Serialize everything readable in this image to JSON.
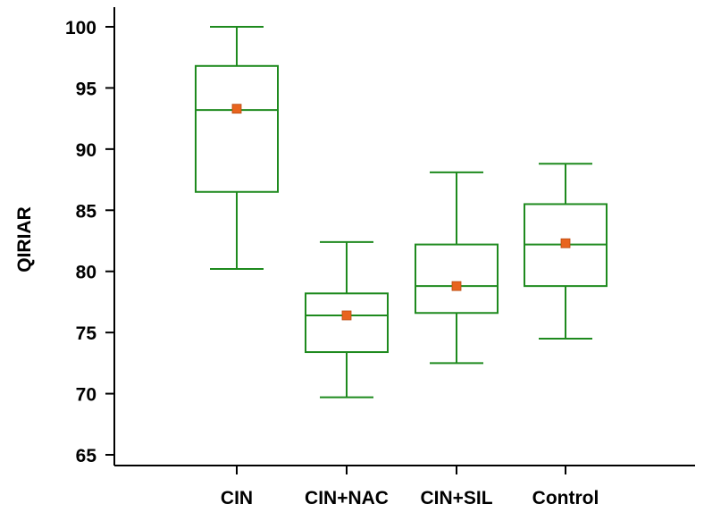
{
  "chart_data": {
    "type": "box",
    "title": "",
    "xlabel": "",
    "ylabel": "QIRIAR",
    "ylim": [
      63.5,
      101
    ],
    "yticks": [
      65,
      70,
      75,
      80,
      85,
      90,
      95,
      100
    ],
    "grid": false,
    "colors": {
      "box": "#1e8a1e",
      "mean_marker": "#e8641e",
      "axis": "#000000"
    },
    "categories": [
      "CIN",
      "CIN+NAC",
      "CIN+SIL",
      "Control"
    ],
    "boxes": [
      {
        "name": "CIN",
        "min": 80.2,
        "q1": 86.5,
        "median": 93.2,
        "q3": 96.8,
        "max": 100.0,
        "mean": 93.3
      },
      {
        "name": "CIN+NAC",
        "min": 69.7,
        "q1": 73.4,
        "median": 76.4,
        "q3": 78.2,
        "max": 82.4,
        "mean": 76.4
      },
      {
        "name": "CIN+SIL",
        "min": 72.5,
        "q1": 76.6,
        "median": 78.8,
        "q3": 82.2,
        "max": 88.1,
        "mean": 78.8
      },
      {
        "name": "Control",
        "min": 74.5,
        "q1": 78.8,
        "median": 82.2,
        "q3": 85.5,
        "max": 88.8,
        "mean": 82.3
      }
    ]
  }
}
